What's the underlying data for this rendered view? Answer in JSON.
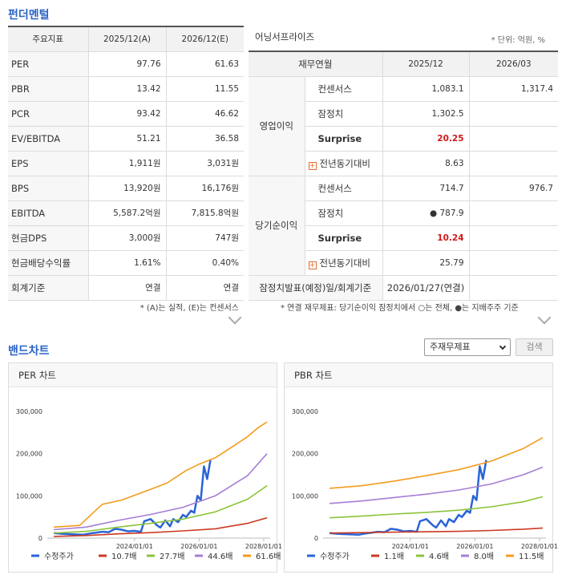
{
  "fundamentals": {
    "title": "펀더멘털",
    "headers": [
      "주요지표",
      "2025/12(A)",
      "2026/12(E)"
    ],
    "rows": [
      [
        "PER",
        "97.76",
        "61.63"
      ],
      [
        "PBR",
        "13.42",
        "11.55"
      ],
      [
        "PCR",
        "93.42",
        "46.62"
      ],
      [
        "EV/EBITDA",
        "51.21",
        "36.58"
      ],
      [
        "EPS",
        "1,911원",
        "3,031원"
      ],
      [
        "BPS",
        "13,920원",
        "16,176원"
      ],
      [
        "EBITDA",
        "5,587.2억원",
        "7,815.8억원"
      ],
      [
        "현금DPS",
        "3,000원",
        "747원"
      ],
      [
        "현금배당수익률",
        "1.61%",
        "0.40%"
      ],
      [
        "회계기준",
        "연결",
        "연결"
      ]
    ],
    "note": "* (A)는 실적, (E)는 컨센서스"
  },
  "earnings": {
    "title": "어닝서프라이즈",
    "unit": "* 단위: 억원, %",
    "headers": [
      "재무연월",
      "2025/12",
      "2026/03"
    ],
    "groups": [
      {
        "label": "영업이익",
        "rows": [
          {
            "label": "컨센서스",
            "v1": "1,083.1",
            "v2": "1,317.4"
          },
          {
            "label": "잠정치",
            "v1": "1,302.5",
            "v2": ""
          },
          {
            "label": "Surprise",
            "v1": "20.25",
            "v2": ""
          },
          {
            "label": "전년동기대비",
            "v1": "8.63",
            "v2": ""
          }
        ]
      },
      {
        "label": "당기순이익",
        "rows": [
          {
            "label": "컨센서스",
            "v1": "714.7",
            "v2": "976.7"
          },
          {
            "label": "잠정치",
            "v1": "● 787.9",
            "v2": ""
          },
          {
            "label": "Surprise",
            "v1": "10.24",
            "v2": ""
          },
          {
            "label": "전년동기대비",
            "v1": "25.79",
            "v2": ""
          }
        ]
      }
    ],
    "release_label": "잠정치발표(예정)일/회계기준",
    "release_value": "2026/01/27(연결)",
    "note": "* 연결 재무제표: 당기순이익 잠정치에서 ○는 전체, ●는 지배주주 기준"
  },
  "band": {
    "title": "밴드차트",
    "select_value": "주재무제표",
    "search_label": "검색"
  },
  "chart_data": [
    {
      "type": "line",
      "title": "PER 차트",
      "ylim": [
        0,
        300000
      ],
      "yticks": [
        "300,000",
        "200,000",
        "100,000",
        "0"
      ],
      "xticks": [
        "2024/01/01",
        "2026/01/01",
        "2028/01/01"
      ],
      "xlim": [
        2021.3,
        2028.2
      ],
      "series": [
        {
          "name": "수정주가",
          "color": "#2a64d6",
          "x": [
            2021.5,
            2021.8,
            2022.1,
            2022.4,
            2022.7,
            2023.0,
            2023.2,
            2023.4,
            2023.6,
            2023.8,
            2024.0,
            2024.2,
            2024.3,
            2024.5,
            2024.7,
            2024.8,
            2024.95,
            2025.1,
            2025.2,
            2025.35,
            2025.5,
            2025.6,
            2025.75,
            2025.85,
            2025.95,
            2026.05,
            2026.15,
            2026.25,
            2026.35
          ],
          "y": [
            12000,
            10000,
            9000,
            8000,
            12000,
            15000,
            14000,
            22000,
            20000,
            16000,
            17000,
            15000,
            40000,
            45000,
            30000,
            25000,
            42000,
            28000,
            45000,
            38000,
            55000,
            50000,
            65000,
            60000,
            100000,
            90000,
            170000,
            140000,
            185000
          ]
        },
        {
          "name": "10.7배",
          "color": "#cc3a22",
          "x": [
            2021.5,
            2022.5,
            2023.5,
            2024.5,
            2025.5,
            2026.5,
            2027.5,
            2028.1
          ],
          "y": [
            4000,
            6000,
            10000,
            13000,
            17000,
            22000,
            35000,
            48000
          ]
        },
        {
          "name": "27.7배",
          "color": "#8bc43a",
          "x": [
            2021.5,
            2022.5,
            2023.5,
            2024.5,
            2025.5,
            2026.5,
            2027.5,
            2028.1
          ],
          "y": [
            12000,
            16000,
            26000,
            35000,
            45000,
            62000,
            92000,
            124000
          ]
        },
        {
          "name": "44.6배",
          "color": "#a57ed6",
          "x": [
            2021.5,
            2022.5,
            2023.5,
            2024.5,
            2025.5,
            2026.5,
            2027.5,
            2028.1
          ],
          "y": [
            20000,
            26000,
            42000,
            56000,
            73000,
            100000,
            148000,
            200000
          ]
        },
        {
          "name": "61.6배",
          "color": "#f39c1d",
          "x": [
            2021.5,
            2022.3,
            2023.0,
            2023.6,
            2024.3,
            2025.0,
            2025.6,
            2026.0,
            2026.5,
            2027.0,
            2027.5,
            2027.8,
            2028.1
          ],
          "y": [
            26000,
            30000,
            80000,
            90000,
            110000,
            130000,
            160000,
            175000,
            190000,
            215000,
            240000,
            260000,
            275000
          ]
        }
      ]
    },
    {
      "type": "line",
      "title": "PBR 차트",
      "ylim": [
        0,
        300000
      ],
      "yticks": [
        "300,000",
        "200,000",
        "100,000",
        "0"
      ],
      "xticks": [
        "2024/01/01",
        "2026/01/01",
        "2028/01/01"
      ],
      "xlim": [
        2021.3,
        2028.2
      ],
      "series": [
        {
          "name": "수정주가",
          "color": "#2a64d6",
          "x": [
            2021.5,
            2021.8,
            2022.1,
            2022.4,
            2022.7,
            2023.0,
            2023.2,
            2023.4,
            2023.6,
            2023.8,
            2024.0,
            2024.2,
            2024.3,
            2024.5,
            2024.7,
            2024.8,
            2024.95,
            2025.1,
            2025.2,
            2025.35,
            2025.5,
            2025.6,
            2025.75,
            2025.85,
            2025.95,
            2026.05,
            2026.15,
            2026.25,
            2026.35
          ],
          "y": [
            12000,
            10000,
            9000,
            8000,
            12000,
            15000,
            14000,
            22000,
            20000,
            16000,
            17000,
            15000,
            40000,
            45000,
            30000,
            25000,
            42000,
            28000,
            45000,
            38000,
            55000,
            50000,
            65000,
            60000,
            100000,
            90000,
            170000,
            140000,
            185000
          ]
        },
        {
          "name": "1.1배",
          "color": "#cc3a22",
          "x": [
            2021.5,
            2022.5,
            2023.5,
            2024.5,
            2025.5,
            2026.5,
            2027.5,
            2028.1
          ],
          "y": [
            12000,
            13000,
            14000,
            15000,
            16000,
            18000,
            21000,
            24000
          ]
        },
        {
          "name": "4.6배",
          "color": "#8bc43a",
          "x": [
            2021.5,
            2022.5,
            2023.5,
            2024.5,
            2025.5,
            2026.5,
            2027.5,
            2028.1
          ],
          "y": [
            48000,
            52000,
            57000,
            61000,
            66000,
            74000,
            86000,
            98000
          ]
        },
        {
          "name": "8.0배",
          "color": "#a57ed6",
          "x": [
            2021.5,
            2022.5,
            2023.5,
            2024.5,
            2025.5,
            2026.5,
            2027.5,
            2028.1
          ],
          "y": [
            82000,
            88000,
            96000,
            104000,
            114000,
            128000,
            150000,
            168000
          ]
        },
        {
          "name": "11.5배",
          "color": "#f39c1d",
          "x": [
            2021.5,
            2022.5,
            2023.5,
            2024.5,
            2025.5,
            2026.5,
            2027.5,
            2028.1
          ],
          "y": [
            118000,
            124000,
            135000,
            148000,
            162000,
            182000,
            212000,
            238000
          ]
        }
      ]
    }
  ]
}
